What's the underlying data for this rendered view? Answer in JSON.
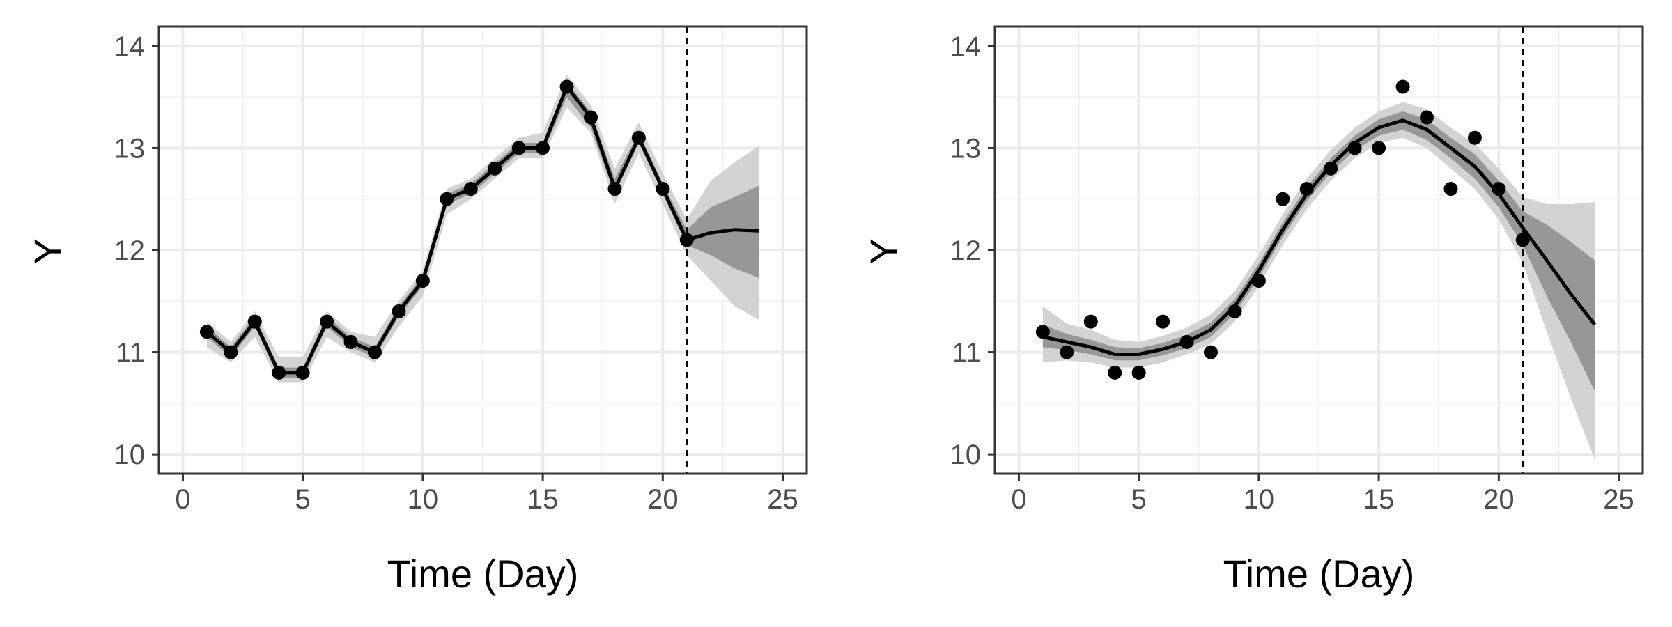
{
  "chart_data": [
    {
      "type": "line",
      "title": "",
      "xlabel": "Time (Day)",
      "ylabel": "Y",
      "xlim": [
        0,
        25
      ],
      "ylim": [
        10,
        14
      ],
      "x_ticks": [
        0,
        5,
        10,
        15,
        20,
        25
      ],
      "y_ticks": [
        10,
        11,
        12,
        13,
        14
      ],
      "grid": true,
      "vline_x": 21,
      "observed": {
        "x": [
          1,
          2,
          3,
          4,
          5,
          6,
          7,
          8,
          9,
          10,
          11,
          12,
          13,
          14,
          15,
          16,
          17,
          18,
          19,
          20,
          21
        ],
        "y": [
          11.2,
          11.0,
          11.3,
          10.8,
          10.8,
          11.3,
          11.1,
          11.0,
          11.4,
          11.7,
          12.5,
          12.6,
          12.8,
          13.0,
          13.0,
          13.6,
          13.3,
          12.6,
          13.1,
          12.6,
          12.1
        ]
      },
      "fit": {
        "x": [
          1,
          2,
          3,
          4,
          5,
          6,
          7,
          8,
          9,
          10,
          11,
          12,
          13,
          14,
          15,
          16,
          17,
          18,
          19,
          20,
          21,
          22,
          23,
          24
        ],
        "y": [
          11.2,
          11.0,
          11.3,
          10.8,
          10.8,
          11.3,
          11.1,
          11.0,
          11.4,
          11.7,
          12.5,
          12.6,
          12.8,
          13.0,
          13.0,
          13.6,
          13.3,
          12.6,
          13.1,
          12.6,
          12.1,
          12.17,
          12.2,
          12.19
        ]
      },
      "band_inner": {
        "lower": [
          11.15,
          10.95,
          11.25,
          10.75,
          10.75,
          11.25,
          11.05,
          10.95,
          11.35,
          11.65,
          12.45,
          12.55,
          12.75,
          12.95,
          12.95,
          13.5,
          13.2,
          12.55,
          13.05,
          12.55,
          12.05,
          11.95,
          11.82,
          11.73
        ],
        "upper": [
          11.25,
          11.05,
          11.35,
          10.85,
          10.85,
          11.35,
          11.15,
          11.05,
          11.45,
          11.75,
          12.55,
          12.65,
          12.85,
          13.05,
          13.05,
          13.65,
          13.35,
          12.7,
          13.15,
          12.65,
          12.2,
          12.42,
          12.52,
          12.63
        ]
      },
      "band_outer": {
        "lower": [
          11.05,
          10.9,
          11.15,
          10.7,
          10.7,
          11.15,
          11.0,
          10.9,
          11.25,
          11.55,
          12.35,
          12.5,
          12.7,
          12.9,
          12.9,
          13.4,
          13.15,
          12.45,
          12.95,
          12.45,
          11.95,
          11.7,
          11.45,
          11.32
        ],
        "upper": [
          11.3,
          11.1,
          11.4,
          10.95,
          10.95,
          11.4,
          11.2,
          11.15,
          11.5,
          11.8,
          12.6,
          12.7,
          12.9,
          13.1,
          13.15,
          13.72,
          13.42,
          12.8,
          13.25,
          12.75,
          12.3,
          12.68,
          12.86,
          13.02
        ]
      }
    },
    {
      "type": "line",
      "title": "",
      "xlabel": "Time (Day)",
      "ylabel": "Y",
      "xlim": [
        0,
        25
      ],
      "ylim": [
        10,
        14
      ],
      "x_ticks": [
        0,
        5,
        10,
        15,
        20,
        25
      ],
      "y_ticks": [
        10,
        11,
        12,
        13,
        14
      ],
      "grid": true,
      "vline_x": 21,
      "observed": {
        "x": [
          1,
          2,
          3,
          4,
          5,
          6,
          7,
          8,
          9,
          10,
          11,
          12,
          13,
          14,
          15,
          16,
          17,
          18,
          19,
          20,
          21
        ],
        "y": [
          11.2,
          11.0,
          11.3,
          10.8,
          10.8,
          11.3,
          11.1,
          11.0,
          11.4,
          11.7,
          12.5,
          12.6,
          12.8,
          13.0,
          13.0,
          13.6,
          13.3,
          12.6,
          13.1,
          12.6,
          12.1
        ]
      },
      "fit": {
        "x": [
          1,
          2,
          3,
          4,
          5,
          6,
          7,
          8,
          9,
          10,
          11,
          12,
          13,
          14,
          15,
          16,
          17,
          18,
          19,
          20,
          21,
          22,
          23,
          24
        ],
        "y": [
          11.15,
          11.1,
          11.05,
          10.98,
          10.98,
          11.03,
          11.1,
          11.22,
          11.45,
          11.8,
          12.2,
          12.55,
          12.83,
          13.05,
          13.2,
          13.27,
          13.18,
          13.0,
          12.82,
          12.55,
          12.22,
          11.9,
          11.57,
          11.27
        ]
      },
      "band_inner": {
        "lower": [
          11.05,
          11.02,
          10.98,
          10.92,
          10.92,
          10.97,
          11.04,
          11.15,
          11.38,
          11.73,
          12.13,
          12.48,
          12.76,
          12.98,
          13.12,
          13.18,
          13.08,
          12.9,
          12.7,
          12.42,
          12.05,
          11.55,
          11.1,
          10.62
        ]
      },
      "band_inner_upper": [
        11.27,
        11.18,
        11.12,
        11.05,
        11.04,
        11.09,
        11.17,
        11.29,
        11.52,
        11.87,
        12.27,
        12.62,
        12.9,
        13.12,
        13.28,
        13.36,
        13.28,
        13.1,
        12.94,
        12.68,
        12.38,
        12.25,
        12.08,
        11.9
      ],
      "band_outer": {
        "lower": [
          10.9,
          10.92,
          10.9,
          10.85,
          10.85,
          10.9,
          10.98,
          11.08,
          11.3,
          11.65,
          12.05,
          12.4,
          12.68,
          12.9,
          13.05,
          13.1,
          13.0,
          12.8,
          12.6,
          12.3,
          11.88,
          11.2,
          10.55,
          9.95
        ],
        "upper": [
          11.45,
          11.28,
          11.22,
          11.12,
          11.1,
          11.16,
          11.24,
          11.37,
          11.6,
          11.95,
          12.35,
          12.7,
          12.98,
          13.2,
          13.36,
          13.45,
          13.38,
          13.2,
          13.04,
          12.8,
          12.52,
          12.45,
          12.45,
          12.47
        ]
      }
    }
  ]
}
